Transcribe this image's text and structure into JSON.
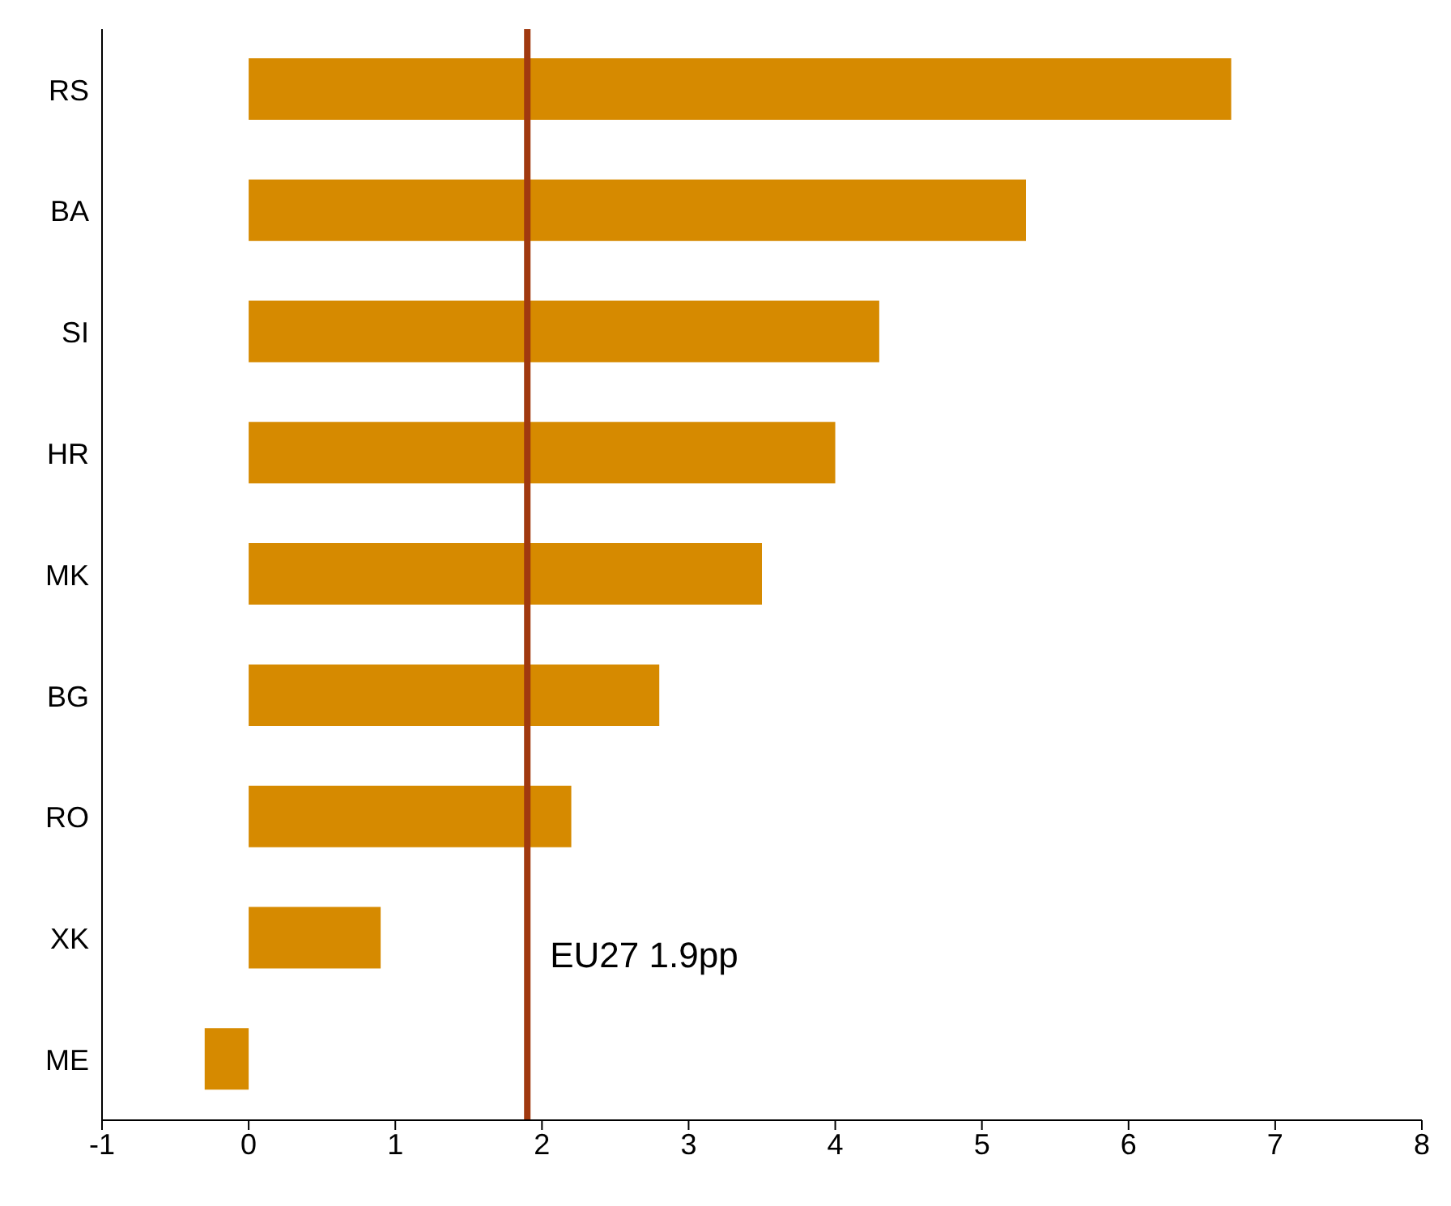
{
  "chart_data": {
    "type": "bar",
    "orientation": "horizontal",
    "categories": [
      "RS",
      "BA",
      "SI",
      "HR",
      "MK",
      "BG",
      "RO",
      "XK",
      "ME"
    ],
    "values": [
      6.7,
      5.3,
      4.3,
      4.0,
      3.5,
      2.8,
      2.2,
      0.9,
      -0.3
    ],
    "color": "#d68a00",
    "xlim": [
      -1,
      8
    ],
    "xticks": [
      -1,
      0,
      1,
      2,
      3,
      4,
      5,
      6,
      7,
      8
    ],
    "grid": false,
    "legend": false,
    "ref_lines": [
      {
        "axis": "x",
        "value": 1.9,
        "label": "EU27 1.9pp",
        "color": "#a0390f",
        "line_style": "solid"
      }
    ]
  }
}
